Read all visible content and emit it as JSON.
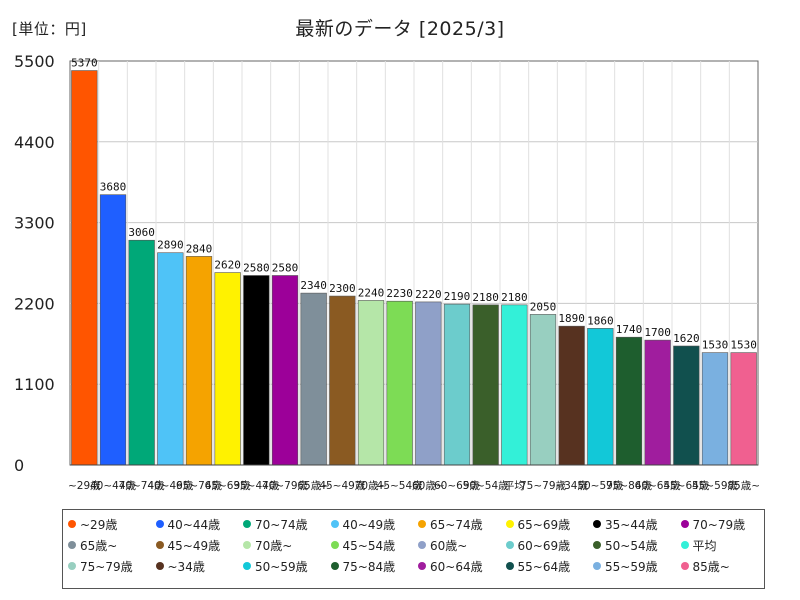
{
  "header": {
    "unit_label": "[単位：円]",
    "title": "最新のデータ [2025/3]"
  },
  "chart_data": {
    "type": "bar",
    "title": "最新のデータ [2025/3]",
    "ylabel": "[単位：円]",
    "xlabel": "",
    "ylim": [
      0,
      5500
    ],
    "yticks": [
      0,
      1100,
      2200,
      3300,
      4400,
      5500
    ],
    "grid": true,
    "legend_position": "bottom",
    "categories": [
      "~29歳",
      "40~44歳",
      "70~74歳",
      "40~49歳",
      "65~74歳",
      "65~69歳",
      "35~44歳",
      "70~79歳",
      "65歳~",
      "45~49歳",
      "70歳~",
      "45~54歳",
      "60歳~",
      "60~69歳",
      "50~54歳",
      "平均",
      "75~79歳",
      "~34歳",
      "50~59歳",
      "75~84歳",
      "60~64歳",
      "55~64歳",
      "55~59歳",
      "85歳~"
    ],
    "values": [
      5370,
      3680,
      3060,
      2890,
      2840,
      2620,
      2580,
      2580,
      2340,
      2300,
      2240,
      2230,
      2220,
      2190,
      2180,
      2180,
      2050,
      1890,
      1860,
      1740,
      1700,
      1620,
      1530,
      1530
    ],
    "colors": [
      "#ff5500",
      "#1f5fff",
      "#00a878",
      "#4fc3f7",
      "#f5a300",
      "#fff200",
      "#000000",
      "#9c0099",
      "#7f8f9a",
      "#8a5a22",
      "#b5e6a8",
      "#7ddc55",
      "#8fa0c8",
      "#6ccccc",
      "#3a5f2a",
      "#33f0d8",
      "#98cfc0",
      "#573220",
      "#12c8d8",
      "#1e5e2e",
      "#a01d9e",
      "#11504e",
      "#7ab0e0",
      "#f06090"
    ]
  }
}
